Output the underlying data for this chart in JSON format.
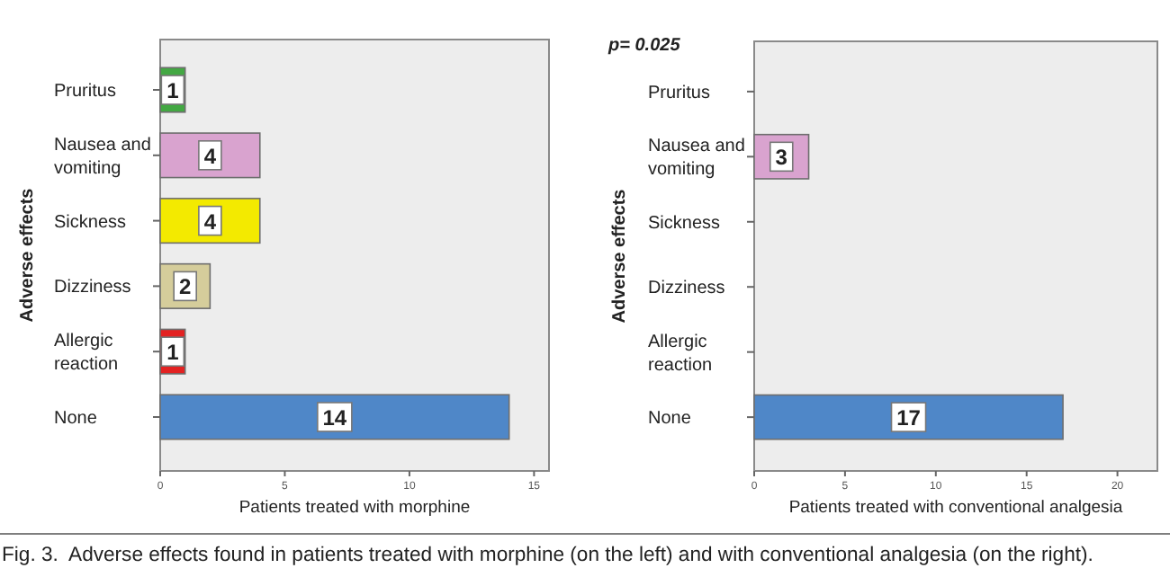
{
  "chart_data": [
    {
      "type": "bar",
      "orientation": "horizontal",
      "xlabel": "Patients treated with morphine",
      "ylabel": "Adverse effects",
      "categories": [
        "Pruritus",
        "Nausea and vomiting",
        "Sickness",
        "Dizziness",
        "Allergic reaction",
        "None"
      ],
      "values": [
        1,
        4,
        4,
        2,
        1,
        14
      ],
      "colors": [
        "#43a843",
        "#d9a3cf",
        "#f3ea00",
        "#d5cd9b",
        "#e32222",
        "#4f87c8"
      ],
      "xlim": [
        0,
        15.6
      ],
      "xticks": [
        0,
        5,
        10,
        15
      ],
      "data_labels": true,
      "annotations": [
        "Fig. 3.  Adverse effects found in patients treated with morphine (on the left) and with conventional analgesia (on the right)."
      ]
    },
    {
      "type": "bar",
      "orientation": "horizontal",
      "xlabel": "Patients treated with conventional analgesia",
      "ylabel": "Adverse effects",
      "categories": [
        "Pruritus",
        "Nausea and vomiting",
        "Sickness",
        "Dizziness",
        "Allergic reaction",
        "None"
      ],
      "values": [
        null,
        3,
        null,
        null,
        null,
        17
      ],
      "colors": [
        null,
        "#d9a3cf",
        null,
        null,
        null,
        "#4f87c8"
      ],
      "xlim": [
        0,
        22.2
      ],
      "xticks": [
        0,
        5,
        10,
        15,
        20
      ],
      "data_labels": true,
      "annotations": [
        "p= 0.025"
      ]
    }
  ]
}
